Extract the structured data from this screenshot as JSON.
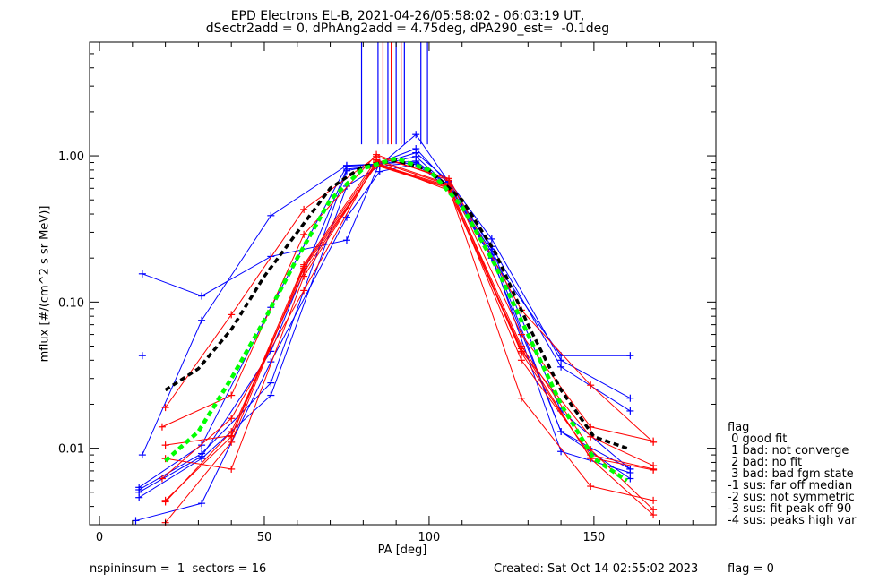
{
  "title_line1": "EPD Electrons EL-B, 2021-04-26/05:58:02 - 06:03:19 UT,",
  "title_line2": "dSectr2add = 0, dPhAng2add = 4.75deg, dPA290_est=  -0.1deg",
  "footer_left": "nspininsum =  1  sectors = 16",
  "footer_created": "Created: Sat Oct 14 02:55:02 2023",
  "footer_flag": "flag = 0",
  "legend": {
    "title": "flag",
    "items": [
      " 0 good fit",
      " 1 bad: not converge",
      " 2 bad: no fit",
      " 3 bad: bad fgm state",
      "-1 sus: far off median",
      "-2 sus: not symmetric",
      "-3 sus: fit peak off 90",
      "-4 sus: peaks high var"
    ]
  },
  "colors": {
    "blue": "#0000ff",
    "red": "#ff0000",
    "black": "#000000",
    "green": "#00ff00"
  },
  "chart_data": {
    "type": "line",
    "xlabel": "PA [deg]",
    "ylabel": "mflux [#/(cm^2 s sr MeV)]",
    "xlim": [
      -3,
      187
    ],
    "ylim": [
      0.003,
      6
    ],
    "yscale": "log",
    "xticks": [
      0,
      50,
      100,
      150
    ],
    "yticks": [
      0.01,
      0.1,
      1.0
    ],
    "ytick_labels": [
      "0.01",
      "0.10",
      "1.00"
    ],
    "verticals": [
      {
        "x": 79.5,
        "color": "blue"
      },
      {
        "x": 84.5,
        "color": "blue"
      },
      {
        "x": 86,
        "color": "red"
      },
      {
        "x": 87.5,
        "color": "blue"
      },
      {
        "x": 88.5,
        "color": "red"
      },
      {
        "x": 90,
        "color": "blue"
      },
      {
        "x": 91.5,
        "color": "red"
      },
      {
        "x": 92.5,
        "color": "blue"
      },
      {
        "x": 97.5,
        "color": "blue"
      },
      {
        "x": 99.5,
        "color": "blue"
      }
    ],
    "verticals_yrange": [
      1.2,
      6
    ],
    "series": [
      {
        "color": "blue",
        "points": [
          [
            13,
            0.156
          ],
          [
            31,
            0.11
          ],
          [
            52,
            0.205
          ],
          [
            75,
            0.265
          ],
          [
            85,
            0.9
          ],
          [
            96,
            1.12
          ],
          [
            106,
            0.64
          ],
          [
            119,
            0.2
          ],
          [
            140,
            0.043
          ],
          [
            161,
            0.043
          ]
        ]
      },
      {
        "color": "blue",
        "points": [
          [
            13,
            0.009
          ],
          [
            31,
            0.075
          ],
          [
            52,
            0.39
          ],
          [
            75,
            0.86
          ],
          [
            85,
            0.88
          ],
          [
            96,
            1.05
          ],
          [
            106,
            0.67
          ],
          [
            119,
            0.27
          ],
          [
            140,
            0.04
          ],
          [
            161,
            0.022
          ]
        ]
      },
      {
        "color": "blue",
        "points": [
          [
            12,
            0.0054
          ],
          [
            31,
            0.0105
          ],
          [
            52,
            0.092
          ],
          [
            75,
            0.85
          ],
          [
            85,
            0.87
          ],
          [
            96,
            0.99
          ],
          [
            106,
            0.62
          ],
          [
            119,
            0.24
          ],
          [
            140,
            0.036
          ],
          [
            161,
            0.018
          ]
        ]
      },
      {
        "color": "blue",
        "points": [
          [
            12,
            0.005
          ],
          [
            31,
            0.0088
          ],
          [
            52,
            0.046
          ],
          [
            75,
            0.81
          ],
          [
            85,
            0.86
          ],
          [
            96,
            1.4
          ],
          [
            106,
            0.66
          ],
          [
            119,
            0.23
          ],
          [
            140,
            0.018
          ],
          [
            161,
            0.0072
          ]
        ]
      },
      {
        "color": "blue",
        "points": [
          [
            11,
            0.0032
          ],
          [
            31,
            0.0042
          ],
          [
            52,
            0.039
          ],
          [
            75,
            0.38
          ],
          [
            85,
            0.78
          ],
          [
            96,
            0.88
          ],
          [
            106,
            0.6
          ],
          [
            119,
            0.2
          ],
          [
            140,
            0.013
          ],
          [
            161,
            0.0062
          ]
        ]
      },
      {
        "color": "blue",
        "points": [
          [
            12,
            0.0046
          ],
          [
            31,
            0.0085
          ],
          [
            52,
            0.023
          ],
          [
            75,
            0.62
          ],
          [
            85,
            0.85
          ],
          [
            96,
            0.9
          ],
          [
            106,
            0.62
          ],
          [
            119,
            0.21
          ],
          [
            140,
            0.0095
          ],
          [
            161,
            0.0068
          ]
        ]
      },
      {
        "color": "blue",
        "points": [
          [
            12,
            0.0052
          ],
          [
            31,
            0.0092
          ],
          [
            52,
            0.028
          ],
          [
            75,
            0.79
          ],
          [
            85,
            0.88
          ],
          [
            96,
            0.92
          ],
          [
            106,
            0.63
          ],
          [
            119,
            0.22
          ],
          [
            140,
            0.013
          ],
          [
            161,
            0.0072
          ]
        ]
      },
      {
        "color": "blue",
        "points": [
          [
            13,
            0.043
          ]
        ]
      },
      {
        "color": "red",
        "points": [
          [
            20,
            0.019
          ],
          [
            40,
            0.082
          ],
          [
            62,
            0.43
          ],
          [
            84,
            0.99
          ],
          [
            106,
            0.7
          ],
          [
            128,
            0.088
          ],
          [
            149,
            0.027
          ],
          [
            168,
            0.011
          ]
        ]
      },
      {
        "color": "red",
        "points": [
          [
            19,
            0.014
          ],
          [
            40,
            0.023
          ],
          [
            62,
            0.29
          ],
          [
            84,
            1.02
          ],
          [
            106,
            0.68
          ],
          [
            128,
            0.06
          ],
          [
            149,
            0.014
          ],
          [
            168,
            0.0112
          ]
        ]
      },
      {
        "color": "red",
        "points": [
          [
            20,
            0.0105
          ],
          [
            40,
            0.0122
          ],
          [
            62,
            0.18
          ],
          [
            84,
            0.94
          ],
          [
            106,
            0.64
          ],
          [
            128,
            0.046
          ],
          [
            149,
            0.012
          ],
          [
            168,
            0.0076
          ]
        ]
      },
      {
        "color": "red",
        "points": [
          [
            20,
            0.0085
          ],
          [
            40,
            0.0072
          ],
          [
            62,
            0.15
          ],
          [
            84,
            0.88
          ],
          [
            106,
            0.62
          ],
          [
            128,
            0.04
          ],
          [
            149,
            0.009
          ],
          [
            168,
            0.0072
          ]
        ]
      },
      {
        "color": "red",
        "points": [
          [
            20,
            0.0044
          ],
          [
            40,
            0.012
          ],
          [
            62,
            0.17
          ],
          [
            84,
            0.86
          ],
          [
            106,
            0.6
          ],
          [
            128,
            0.022
          ],
          [
            149,
            0.0055
          ],
          [
            168,
            0.0044
          ]
        ]
      },
      {
        "color": "red",
        "points": [
          [
            19,
            0.0062
          ],
          [
            40,
            0.016
          ],
          [
            62,
            0.12
          ],
          [
            84,
            0.92
          ],
          [
            106,
            0.63
          ],
          [
            128,
            0.05
          ],
          [
            149,
            0.0098
          ],
          [
            168,
            0.0038
          ]
        ]
      },
      {
        "color": "red",
        "points": [
          [
            20,
            0.0031
          ],
          [
            40,
            0.011
          ],
          [
            62,
            0.175
          ],
          [
            84,
            0.9
          ],
          [
            106,
            0.58
          ],
          [
            128,
            0.048
          ],
          [
            149,
            0.0085
          ],
          [
            168,
            0.0035
          ]
        ]
      },
      {
        "color": "red",
        "points": [
          [
            20,
            0.0043
          ],
          [
            40,
            0.013
          ],
          [
            62,
            0.16
          ],
          [
            84,
            0.87
          ],
          [
            106,
            0.61
          ],
          [
            128,
            0.045
          ],
          [
            149,
            0.0086
          ],
          [
            168,
            0.0071
          ]
        ]
      },
      {
        "color": "black",
        "dashed": true,
        "width": 3.5,
        "points": [
          [
            20,
            0.025
          ],
          [
            30,
            0.035
          ],
          [
            40,
            0.065
          ],
          [
            50,
            0.15
          ],
          [
            60,
            0.3
          ],
          [
            70,
            0.6
          ],
          [
            80,
            0.85
          ],
          [
            90,
            0.93
          ],
          [
            100,
            0.8
          ],
          [
            110,
            0.5
          ],
          [
            120,
            0.22
          ],
          [
            130,
            0.07
          ],
          [
            140,
            0.025
          ],
          [
            150,
            0.012
          ],
          [
            160,
            0.01
          ]
        ]
      },
      {
        "color": "green",
        "dashed": true,
        "width": 4.5,
        "points": [
          [
            20,
            0.0082
          ],
          [
            30,
            0.013
          ],
          [
            40,
            0.03
          ],
          [
            50,
            0.075
          ],
          [
            60,
            0.2
          ],
          [
            70,
            0.5
          ],
          [
            80,
            0.82
          ],
          [
            90,
            0.96
          ],
          [
            100,
            0.8
          ],
          [
            110,
            0.45
          ],
          [
            120,
            0.18
          ],
          [
            130,
            0.06
          ],
          [
            140,
            0.02
          ],
          [
            150,
            0.0085
          ],
          [
            160,
            0.006
          ]
        ]
      }
    ]
  }
}
